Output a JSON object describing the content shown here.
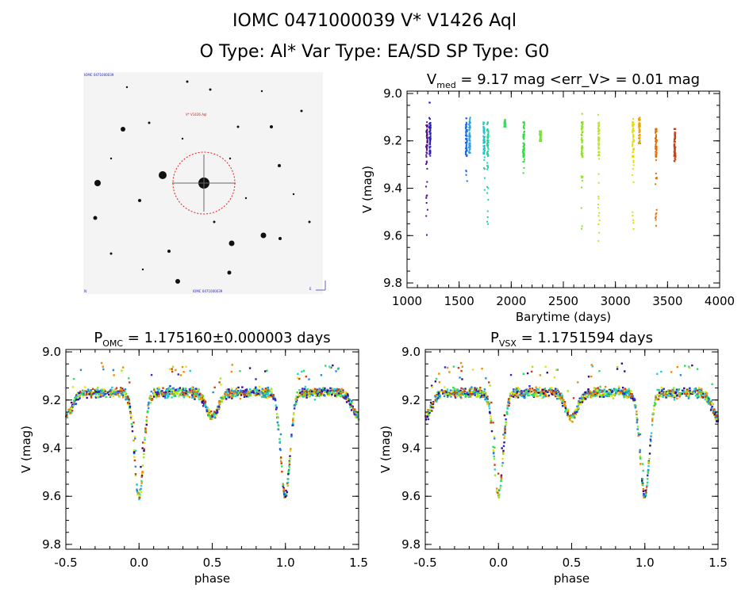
{
  "header": {
    "line1": "IOMC 0471000039    V* V1426 Aql",
    "line2": "O Type: Al*  Var Type: EA/SD  SP Type: G0"
  },
  "finder": {
    "label_top_left": "IOMC 0471000039",
    "label_target": "V* V1426 Aql",
    "label_bottom_left": "N",
    "label_bottom_center": "IOMC 0471000039",
    "label_bottom_right": "E"
  },
  "chart_data": [
    {
      "type": "scatter",
      "title": "V",
      "title_sub": "med",
      "title_rest": " = 9.17 mag <err_V> = 0.01 mag",
      "xlabel": "Barytime (days)",
      "ylabel": "V (mag)",
      "xlim": [
        1000,
        4000
      ],
      "ylim": [
        9.82,
        8.99
      ],
      "xticks": [
        "1000",
        "1500",
        "2000",
        "2500",
        "3000",
        "3500",
        "4000"
      ],
      "yticks": [
        "9.0",
        "9.2",
        "9.4",
        "9.6",
        "9.8"
      ],
      "seasons": [
        {
          "x": 1190,
          "ymin": 9.07,
          "ymax": 9.6,
          "color": "#5a0f8c"
        },
        {
          "x": 1220,
          "ymin": 9.03,
          "ymax": 9.3,
          "color": "#2a1fc0"
        },
        {
          "x": 1570,
          "ymin": 9.1,
          "ymax": 9.38,
          "color": "#1f6ae0"
        },
        {
          "x": 1600,
          "ymin": 9.1,
          "ymax": 9.25,
          "color": "#2aa0e0"
        },
        {
          "x": 1740,
          "ymin": 9.12,
          "ymax": 9.42,
          "color": "#22c6c8"
        },
        {
          "x": 1775,
          "ymin": 9.1,
          "ymax": 9.57,
          "color": "#1fd79a"
        },
        {
          "x": 1940,
          "ymin": 9.11,
          "ymax": 9.14,
          "color": "#36e060"
        },
        {
          "x": 2120,
          "ymin": 9.11,
          "ymax": 9.34,
          "color": "#2ee03a"
        },
        {
          "x": 2280,
          "ymin": 9.16,
          "ymax": 9.2,
          "color": "#7ce03a"
        },
        {
          "x": 2680,
          "ymin": 9.07,
          "ymax": 9.6,
          "color": "#8ee024"
        },
        {
          "x": 2840,
          "ymin": 9.08,
          "ymax": 9.63,
          "color": "#b8e82a"
        },
        {
          "x": 3170,
          "ymin": 9.08,
          "ymax": 9.58,
          "color": "#e0e000"
        },
        {
          "x": 3230,
          "ymin": 9.1,
          "ymax": 9.21,
          "color": "#f0a000"
        },
        {
          "x": 3390,
          "ymin": 9.15,
          "ymax": 9.57,
          "color": "#e07000"
        },
        {
          "x": 3570,
          "ymin": 9.15,
          "ymax": 9.3,
          "color": "#d04010"
        }
      ]
    },
    {
      "type": "scatter",
      "title": "P",
      "title_sub": "OMC",
      "title_rest": " = 1.175160±0.000003 days",
      "xlabel": "phase",
      "ylabel": "V (mag)",
      "xlim": [
        -0.5,
        1.5
      ],
      "ylim": [
        9.82,
        8.99
      ],
      "xticks": [
        "-0.5",
        "0.0",
        "0.5",
        "1.0",
        "1.5"
      ],
      "yticks": [
        "9.0",
        "9.2",
        "9.4",
        "9.6",
        "9.8"
      ],
      "light_curve": {
        "baseline": 9.17,
        "primary_depth": 9.6,
        "primary_phase": 0.0,
        "primary_width": 0.045,
        "secondary_depth": 9.27,
        "secondary_phase": 0.5,
        "secondary_width": 0.06
      }
    },
    {
      "type": "scatter",
      "title": "P",
      "title_sub": "VSX",
      "title_rest": " = 1.1751594 days",
      "xlabel": "phase",
      "ylabel": "V (mag)",
      "xlim": [
        -0.5,
        1.5
      ],
      "ylim": [
        9.82,
        8.99
      ],
      "xticks": [
        "-0.5",
        "0.0",
        "0.5",
        "1.0",
        "1.5"
      ],
      "yticks": [
        "9.0",
        "9.2",
        "9.4",
        "9.6",
        "9.8"
      ],
      "light_curve": {
        "baseline": 9.17,
        "primary_depth": 9.6,
        "primary_phase": 0.0,
        "primary_width": 0.045,
        "secondary_depth": 9.27,
        "secondary_phase": 0.5,
        "secondary_width": 0.06
      }
    }
  ]
}
